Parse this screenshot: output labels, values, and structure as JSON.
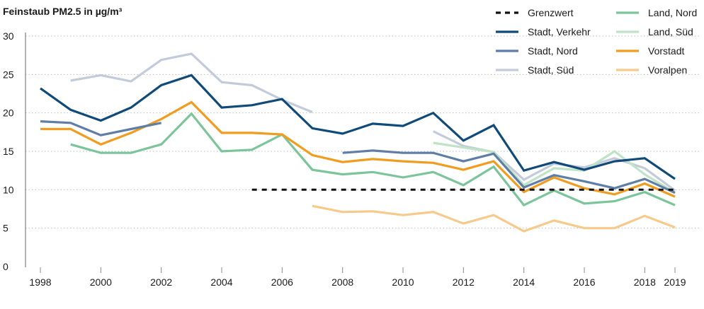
{
  "chart_data": {
    "type": "line",
    "title": "Feinstaub PM2.5 in µg/m³",
    "xlabel": "",
    "ylabel": "",
    "xlim": [
      1998,
      2019
    ],
    "ylim": [
      0,
      30
    ],
    "x_ticks": [
      1998,
      2000,
      2002,
      2004,
      2006,
      2008,
      2010,
      2012,
      2014,
      2016,
      2018,
      2019
    ],
    "y_ticks": [
      0,
      5,
      10,
      15,
      20,
      25,
      30
    ],
    "grid": "horizontal dotted",
    "legend_position": "top-right",
    "series": [
      {
        "name": "Grenzwert",
        "color": "#111111",
        "dashed": true,
        "points": [
          [
            2005,
            10
          ],
          [
            2019,
            10
          ]
        ]
      },
      {
        "name": "Stadt, Verkehr",
        "color": "#0f4a78",
        "points": [
          [
            1998,
            23.2
          ],
          [
            1999,
            20.4
          ],
          [
            2000,
            19.0
          ],
          [
            2001,
            20.7
          ],
          [
            2002,
            23.6
          ],
          [
            2003,
            24.9
          ],
          [
            2004,
            20.7
          ],
          [
            2005,
            21.0
          ],
          [
            2006,
            21.8
          ],
          [
            2007,
            18.0
          ],
          [
            2008,
            17.3
          ],
          [
            2009,
            18.6
          ],
          [
            2010,
            18.3
          ],
          [
            2011,
            20.0
          ],
          [
            2012,
            16.4
          ],
          [
            2013,
            18.4
          ],
          [
            2014,
            12.5
          ],
          [
            2015,
            13.6
          ],
          [
            2016,
            12.6
          ],
          [
            2017,
            13.7
          ],
          [
            2018,
            14.1
          ],
          [
            2019,
            11.4
          ]
        ]
      },
      {
        "name": "Stadt, Nord",
        "color": "#5e7ea6",
        "points": [
          [
            1998,
            18.9
          ],
          [
            1999,
            18.7
          ],
          [
            2000,
            17.1
          ],
          [
            2001,
            17.9
          ],
          [
            2002,
            18.7
          ],
          null,
          [
            2008,
            14.8
          ],
          [
            2009,
            15.1
          ],
          [
            2010,
            14.8
          ],
          [
            2011,
            14.8
          ],
          [
            2012,
            13.7
          ],
          [
            2013,
            14.7
          ],
          [
            2014,
            10.3
          ],
          [
            2015,
            11.9
          ],
          [
            2016,
            11.1
          ],
          [
            2017,
            10.2
          ],
          [
            2018,
            11.4
          ],
          [
            2019,
            9.6
          ]
        ]
      },
      {
        "name": "Stadt, Süd",
        "color": "#c3cbdb",
        "points": [
          [
            1999,
            24.2
          ],
          [
            2000,
            24.9
          ],
          [
            2001,
            24.1
          ],
          [
            2002,
            26.9
          ],
          [
            2003,
            27.7
          ],
          [
            2004,
            24.0
          ],
          [
            2005,
            23.6
          ],
          [
            2006,
            21.7
          ],
          [
            2007,
            20.1
          ],
          null,
          [
            2011,
            17.6
          ],
          [
            2012,
            15.7
          ],
          [
            2013,
            14.9
          ],
          [
            2014,
            11.3
          ],
          [
            2015,
            13.4
          ],
          [
            2016,
            12.9
          ],
          [
            2017,
            14.1
          ],
          [
            2018,
            12.8
          ],
          [
            2019,
            9.9
          ]
        ]
      },
      {
        "name": "Land, Nord",
        "color": "#7cc59a",
        "points": [
          [
            1999,
            15.9
          ],
          [
            2000,
            14.8
          ],
          [
            2001,
            14.8
          ],
          [
            2002,
            15.9
          ],
          [
            2003,
            19.9
          ],
          [
            2004,
            15.0
          ],
          [
            2005,
            15.2
          ],
          [
            2006,
            17.2
          ],
          [
            2007,
            12.6
          ],
          [
            2008,
            12.0
          ],
          [
            2009,
            12.3
          ],
          [
            2010,
            11.6
          ],
          [
            2011,
            12.3
          ],
          [
            2012,
            10.6
          ],
          [
            2013,
            13.0
          ],
          [
            2014,
            8.0
          ],
          [
            2015,
            9.9
          ],
          [
            2016,
            8.2
          ],
          [
            2017,
            8.5
          ],
          [
            2018,
            9.7
          ],
          [
            2019,
            8.0
          ]
        ]
      },
      {
        "name": "Land, Süd",
        "color": "#bfe3c6",
        "points": [
          [
            2011,
            16.1
          ],
          [
            2012,
            15.5
          ],
          [
            2013,
            14.9
          ],
          [
            2014,
            10.6
          ],
          [
            2015,
            12.8
          ],
          [
            2016,
            12.5
          ],
          [
            2017,
            15.0
          ],
          [
            2018,
            12.0
          ],
          [
            2019,
            9.6
          ]
        ]
      },
      {
        "name": "Vorstadt",
        "color": "#f29c1f",
        "points": [
          [
            1998,
            17.9
          ],
          [
            1999,
            17.9
          ],
          [
            2000,
            15.9
          ],
          [
            2001,
            17.4
          ],
          [
            2002,
            19.2
          ],
          [
            2003,
            21.4
          ],
          [
            2004,
            17.4
          ],
          [
            2005,
            17.4
          ],
          [
            2006,
            17.2
          ],
          [
            2007,
            14.5
          ],
          [
            2008,
            13.6
          ],
          [
            2009,
            14.0
          ],
          [
            2010,
            13.7
          ],
          [
            2011,
            13.5
          ],
          [
            2012,
            12.6
          ],
          [
            2013,
            13.7
          ],
          [
            2014,
            9.7
          ],
          [
            2015,
            11.6
          ],
          [
            2016,
            10.2
          ],
          [
            2017,
            9.4
          ],
          [
            2018,
            10.8
          ],
          [
            2019,
            9.1
          ]
        ]
      },
      {
        "name": "Voralpen",
        "color": "#f7c98a",
        "points": [
          [
            2007,
            7.9
          ],
          [
            2008,
            7.1
          ],
          [
            2009,
            7.2
          ],
          [
            2010,
            6.7
          ],
          [
            2011,
            7.1
          ],
          [
            2012,
            5.6
          ],
          [
            2013,
            6.7
          ],
          [
            2014,
            4.6
          ],
          [
            2015,
            6.0
          ],
          [
            2016,
            5.0
          ],
          [
            2017,
            5.0
          ],
          [
            2018,
            6.6
          ],
          [
            2019,
            5.1
          ]
        ]
      }
    ]
  }
}
